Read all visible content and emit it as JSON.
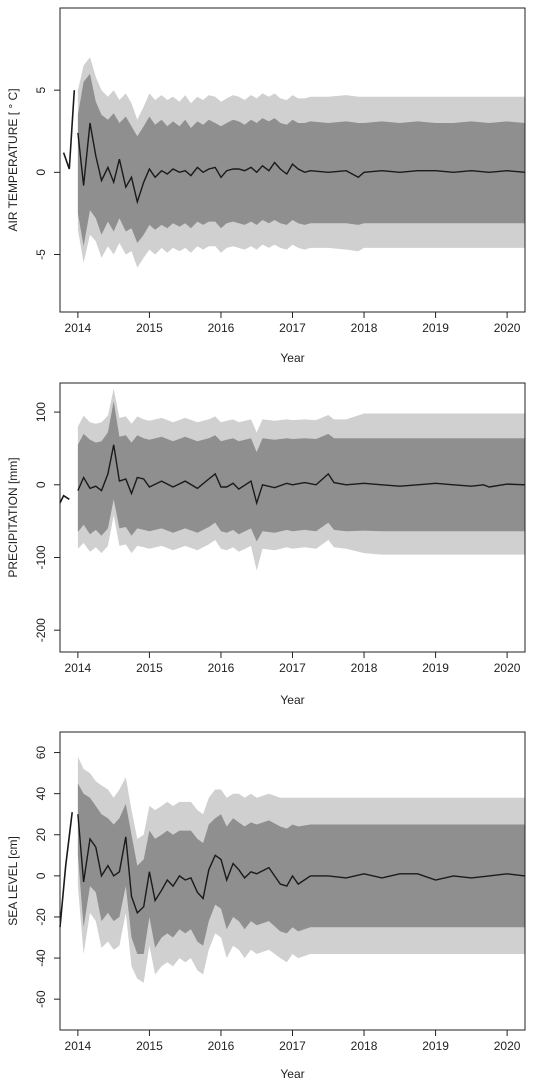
{
  "chart_data": [
    {
      "type": "line",
      "xlabel": "Year",
      "ylabel": "AIR TEMPERATURE [ ° C]",
      "xlim": [
        2013.75,
        2020.25
      ],
      "ylim": [
        -8.5,
        10
      ],
      "xticks": [
        "2014",
        "2015",
        "2016",
        "2017",
        "2018",
        "2019",
        "2020"
      ],
      "yticks": [
        "-5",
        "0",
        "5"
      ],
      "observed": {
        "x": [
          2013.8,
          2013.88,
          2013.95
        ],
        "y": [
          1.2,
          0.2,
          5.0
        ]
      },
      "forecast": {
        "x": [
          2014.0,
          2014.08,
          2014.17,
          2014.25,
          2014.33,
          2014.42,
          2014.5,
          2014.58,
          2014.67,
          2014.75,
          2014.83,
          2014.92,
          2015.0,
          2015.08,
          2015.17,
          2015.25,
          2015.33,
          2015.42,
          2015.5,
          2015.58,
          2015.67,
          2015.75,
          2015.83,
          2015.92,
          2016.0,
          2016.08,
          2016.17,
          2016.25,
          2016.33,
          2016.42,
          2016.5,
          2016.58,
          2016.67,
          2016.75,
          2016.83,
          2016.92,
          2017.0,
          2017.08,
          2017.17,
          2017.25,
          2017.5,
          2017.75,
          2017.92,
          2018.0,
          2018.25,
          2018.5,
          2018.75,
          2019.0,
          2019.25,
          2019.5,
          2019.75,
          2020.0,
          2020.25
        ],
        "y": [
          2.4,
          -0.8,
          3.0,
          1.0,
          -0.5,
          0.3,
          -0.6,
          0.8,
          -0.9,
          -0.3,
          -1.8,
          -0.6,
          0.2,
          -0.3,
          0.1,
          -0.1,
          0.2,
          0.0,
          0.1,
          -0.2,
          0.3,
          0.0,
          0.2,
          0.3,
          -0.3,
          0.1,
          0.2,
          0.2,
          0.1,
          0.3,
          0.0,
          0.4,
          0.1,
          0.6,
          0.2,
          -0.1,
          0.5,
          0.2,
          0.0,
          0.1,
          0.0,
          0.1,
          -0.3,
          0.0,
          0.1,
          0.0,
          0.1,
          0.1,
          0.0,
          0.1,
          0.0,
          0.1,
          0.0
        ],
        "inner_band_upper": [
          3.5,
          5.5,
          6.0,
          4.3,
          3.5,
          3.2,
          3.6,
          3.0,
          3.4,
          2.8,
          2.2,
          2.8,
          3.4,
          2.9,
          3.2,
          2.8,
          3.1,
          2.8,
          3.2,
          2.7,
          3.1,
          2.9,
          3.2,
          3.0,
          2.8,
          3.0,
          3.2,
          3.1,
          2.9,
          3.2,
          3.0,
          3.3,
          3.1,
          3.3,
          3.0,
          2.9,
          3.2,
          3.0,
          3.0,
          3.1,
          3.0,
          3.1,
          3.0,
          3.0,
          3.1,
          3.0,
          3.1,
          3.0,
          3.0,
          3.1,
          3.0,
          3.1,
          3.0
        ],
        "inner_band_lower": [
          -2.5,
          -4.5,
          -2.3,
          -2.8,
          -3.8,
          -3.0,
          -3.6,
          -2.8,
          -3.6,
          -3.4,
          -4.3,
          -3.8,
          -3.2,
          -3.5,
          -3.2,
          -3.4,
          -3.1,
          -3.3,
          -3.1,
          -3.4,
          -3.0,
          -3.2,
          -3.0,
          -3.0,
          -3.4,
          -3.1,
          -3.0,
          -3.1,
          -3.2,
          -3.0,
          -3.2,
          -2.9,
          -3.1,
          -2.9,
          -3.1,
          -3.2,
          -2.9,
          -3.1,
          -3.2,
          -3.1,
          -3.1,
          -3.1,
          -3.2,
          -3.1,
          -3.1,
          -3.1,
          -3.1,
          -3.1,
          -3.1,
          -3.1,
          -3.1,
          -3.1,
          -3.1
        ],
        "outer_band_upper": [
          5.0,
          6.5,
          7.0,
          5.8,
          5.0,
          4.6,
          5.0,
          4.4,
          4.8,
          4.2,
          3.2,
          4.0,
          4.8,
          4.4,
          4.7,
          4.4,
          4.6,
          4.3,
          4.7,
          4.2,
          4.6,
          4.4,
          4.7,
          4.6,
          4.3,
          4.5,
          4.7,
          4.6,
          4.4,
          4.7,
          4.5,
          4.8,
          4.6,
          4.8,
          4.5,
          4.4,
          4.7,
          4.5,
          4.5,
          4.6,
          4.6,
          4.7,
          4.6,
          4.6,
          4.6,
          4.6,
          4.6,
          4.6,
          4.6,
          4.6,
          4.6,
          4.6,
          4.6
        ],
        "outer_band_lower": [
          -3.5,
          -5.5,
          -3.8,
          -4.2,
          -5.2,
          -4.5,
          -5.0,
          -4.3,
          -5.0,
          -4.8,
          -5.8,
          -5.2,
          -4.7,
          -5.0,
          -4.6,
          -4.9,
          -4.6,
          -4.8,
          -4.6,
          -4.9,
          -4.5,
          -4.7,
          -4.5,
          -4.5,
          -4.9,
          -4.6,
          -4.5,
          -4.6,
          -4.7,
          -4.5,
          -4.7,
          -4.4,
          -4.6,
          -4.4,
          -4.6,
          -4.7,
          -4.4,
          -4.6,
          -4.7,
          -4.6,
          -4.6,
          -4.7,
          -4.8,
          -4.6,
          -4.6,
          -4.6,
          -4.6,
          -4.6,
          -4.6,
          -4.6,
          -4.6,
          -4.6,
          -4.6
        ]
      }
    },
    {
      "type": "line",
      "xlabel": "Year",
      "ylabel": "PRECIPITATION [mm]",
      "xlim": [
        2013.75,
        2020.25
      ],
      "ylim": [
        -230,
        140
      ],
      "xticks": [
        "2014",
        "2015",
        "2016",
        "2017",
        "2018",
        "2019",
        "2020"
      ],
      "yticks": [
        "-200",
        "-100",
        "0",
        "100"
      ],
      "observed": {
        "x": [
          2013.75,
          2013.8,
          2013.88
        ],
        "y": [
          -25,
          -15,
          -20
        ]
      },
      "forecast": {
        "x": [
          2014.0,
          2014.08,
          2014.17,
          2014.25,
          2014.33,
          2014.42,
          2014.5,
          2014.58,
          2014.67,
          2014.75,
          2014.83,
          2014.92,
          2015.0,
          2015.17,
          2015.33,
          2015.5,
          2015.67,
          2015.83,
          2015.92,
          2016.0,
          2016.08,
          2016.17,
          2016.25,
          2016.42,
          2016.5,
          2016.58,
          2016.75,
          2016.92,
          2017.0,
          2017.17,
          2017.33,
          2017.5,
          2017.58,
          2017.75,
          2018.0,
          2018.25,
          2018.5,
          2018.75,
          2019.0,
          2019.25,
          2019.5,
          2019.67,
          2019.75,
          2020.0,
          2020.25
        ],
        "y": [
          -8,
          10,
          -5,
          -2,
          -8,
          15,
          55,
          5,
          8,
          -12,
          10,
          8,
          -3,
          5,
          -3,
          5,
          -5,
          8,
          15,
          -3,
          -3,
          2,
          -6,
          5,
          -25,
          0,
          -4,
          2,
          0,
          3,
          0,
          15,
          3,
          0,
          2,
          0,
          -2,
          0,
          2,
          0,
          -2,
          0,
          -3,
          1,
          0
        ],
        "inner_band_upper": [
          55,
          70,
          62,
          58,
          60,
          72,
          115,
          66,
          68,
          58,
          68,
          64,
          62,
          66,
          60,
          66,
          60,
          64,
          68,
          60,
          62,
          64,
          60,
          64,
          45,
          64,
          62,
          64,
          63,
          64,
          63,
          70,
          64,
          64,
          64,
          64,
          64,
          64,
          64,
          64,
          64,
          64,
          64,
          64,
          64
        ],
        "inner_band_lower": [
          -65,
          -55,
          -68,
          -62,
          -70,
          -60,
          -20,
          -60,
          -58,
          -70,
          -60,
          -62,
          -64,
          -60,
          -66,
          -60,
          -66,
          -58,
          -52,
          -64,
          -66,
          -62,
          -68,
          -60,
          -78,
          -64,
          -66,
          -62,
          -64,
          -62,
          -64,
          -52,
          -62,
          -64,
          -63,
          -64,
          -64,
          -64,
          -64,
          -64,
          -64,
          -64,
          -64,
          -64,
          -64
        ],
        "outer_band_upper": [
          80,
          95,
          86,
          84,
          86,
          95,
          132,
          92,
          94,
          84,
          94,
          90,
          88,
          92,
          86,
          92,
          86,
          90,
          94,
          86,
          88,
          90,
          86,
          90,
          72,
          90,
          88,
          90,
          89,
          90,
          89,
          96,
          90,
          90,
          98,
          98,
          98,
          98,
          98,
          98,
          98,
          98,
          98,
          98,
          98
        ],
        "outer_band_lower": [
          -88,
          -80,
          -92,
          -86,
          -94,
          -84,
          -42,
          -84,
          -82,
          -94,
          -84,
          -86,
          -88,
          -84,
          -90,
          -84,
          -90,
          -82,
          -76,
          -88,
          -90,
          -86,
          -92,
          -84,
          -118,
          -88,
          -90,
          -86,
          -88,
          -86,
          -88,
          -76,
          -86,
          -88,
          -94,
          -96,
          -96,
          -96,
          -96,
          -96,
          -96,
          -96,
          -96,
          -96,
          -96
        ]
      }
    },
    {
      "type": "line",
      "xlabel": "Year",
      "ylabel": "SEA LEVEL [cm]",
      "xlim": [
        2013.75,
        2020.25
      ],
      "ylim": [
        -75,
        70
      ],
      "xticks": [
        "2014",
        "2015",
        "2016",
        "2017",
        "2018",
        "2019",
        "2020"
      ],
      "yticks": [
        "-60",
        "-40",
        "-20",
        "0",
        "20",
        "40",
        "60"
      ],
      "observed": {
        "x": [
          2013.75,
          2013.83,
          2013.92
        ],
        "y": [
          -25,
          5,
          31
        ]
      },
      "forecast": {
        "x": [
          2014.0,
          2014.08,
          2014.17,
          2014.25,
          2014.33,
          2014.42,
          2014.5,
          2014.58,
          2014.67,
          2014.75,
          2014.83,
          2014.92,
          2015.0,
          2015.08,
          2015.17,
          2015.25,
          2015.33,
          2015.42,
          2015.5,
          2015.58,
          2015.67,
          2015.75,
          2015.83,
          2015.92,
          2016.0,
          2016.08,
          2016.17,
          2016.25,
          2016.33,
          2016.42,
          2016.5,
          2016.67,
          2016.83,
          2016.92,
          2017.0,
          2017.08,
          2017.25,
          2017.5,
          2017.75,
          2018.0,
          2018.25,
          2018.5,
          2018.75,
          2019.0,
          2019.25,
          2019.5,
          2019.75,
          2020.0,
          2020.25
        ],
        "y": [
          30,
          -3,
          18,
          14,
          0,
          5,
          0,
          2,
          19,
          -10,
          -18,
          -15,
          2,
          -12,
          -7,
          -2,
          -5,
          0,
          -2,
          -1,
          -8,
          -11,
          3,
          10,
          8,
          -2,
          6,
          3,
          -1,
          2,
          1,
          4,
          -4,
          -5,
          0,
          -4,
          0,
          0,
          -1,
          1,
          -1,
          1,
          1,
          -2,
          0,
          -1,
          0,
          1,
          0
        ],
        "inner_band_upper": [
          45,
          40,
          38,
          34,
          30,
          28,
          25,
          28,
          35,
          20,
          5,
          8,
          22,
          18,
          20,
          22,
          20,
          22,
          22,
          22,
          18,
          16,
          25,
          28,
          30,
          24,
          28,
          26,
          24,
          26,
          25,
          27,
          24,
          23,
          25,
          24,
          25,
          25,
          25,
          25,
          25,
          25,
          25,
          25,
          25,
          25,
          25,
          25,
          25
        ],
        "inner_band_lower": [
          10,
          -25,
          -5,
          -8,
          -22,
          -18,
          -22,
          -20,
          -5,
          -30,
          -38,
          -38,
          -20,
          -35,
          -30,
          -28,
          -30,
          -26,
          -28,
          -26,
          -32,
          -34,
          -22,
          -14,
          -16,
          -26,
          -20,
          -22,
          -26,
          -22,
          -24,
          -22,
          -27,
          -28,
          -25,
          -27,
          -25,
          -25,
          -25,
          -25,
          -25,
          -25,
          -25,
          -25,
          -25,
          -25,
          -25,
          -25,
          -25
        ],
        "outer_band_upper": [
          58,
          52,
          50,
          46,
          44,
          42,
          38,
          42,
          48,
          32,
          18,
          20,
          34,
          32,
          34,
          36,
          34,
          36,
          36,
          36,
          32,
          30,
          38,
          42,
          42,
          38,
          40,
          40,
          38,
          40,
          38,
          40,
          38,
          38,
          38,
          38,
          38,
          38,
          38,
          38,
          38,
          38,
          38,
          38,
          38,
          38,
          38,
          38,
          38
        ],
        "outer_band_lower": [
          -5,
          -38,
          -18,
          -22,
          -35,
          -32,
          -36,
          -34,
          -18,
          -44,
          -50,
          -52,
          -34,
          -48,
          -44,
          -42,
          -44,
          -40,
          -42,
          -40,
          -46,
          -48,
          -36,
          -28,
          -30,
          -40,
          -34,
          -36,
          -40,
          -36,
          -38,
          -36,
          -40,
          -42,
          -38,
          -40,
          -38,
          -38,
          -38,
          -38,
          -38,
          -38,
          -38,
          -38,
          -38,
          -38,
          -38,
          -38,
          -38
        ]
      }
    }
  ]
}
